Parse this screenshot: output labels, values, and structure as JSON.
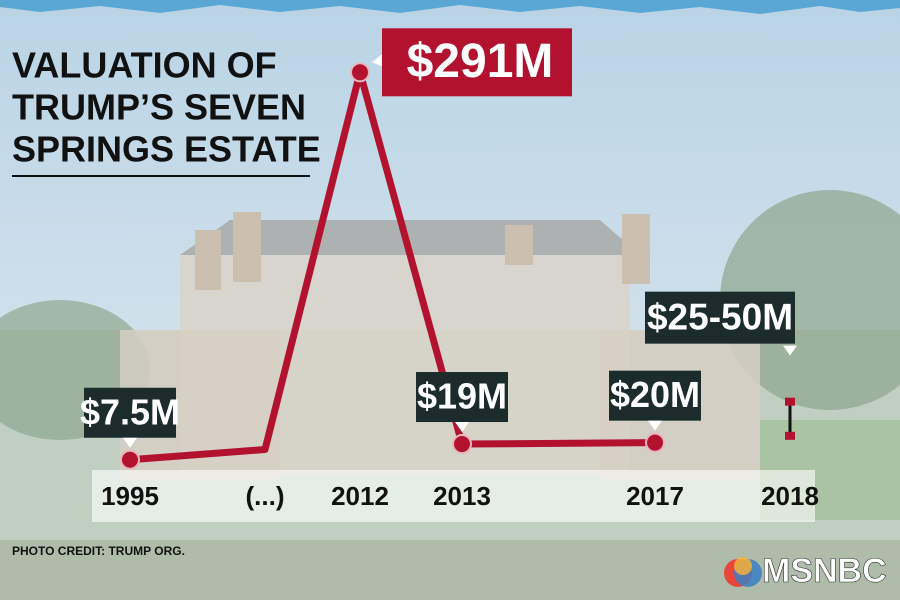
{
  "chart_data": {
    "type": "line",
    "title_lines": [
      "VALUATION OF",
      "TRUMP’S SEVEN",
      "SPRINGS ESTATE"
    ],
    "categories": [
      "1995",
      "(...)",
      "2012",
      "2013",
      "2017",
      "2018"
    ],
    "series": [
      {
        "color": "#b3122e",
        "values": [
          7.5,
          15,
          291,
          19,
          20,
          null
        ],
        "value_labels": [
          "$7.5M",
          null,
          "$291M",
          "$19M",
          "$20M",
          null
        ]
      }
    ],
    "range": {
      "low": 25,
      "high": 50,
      "label": "$25-50M"
    },
    "ylim": [
      0,
      300
    ],
    "credit": "PHOTO CREDIT: TRUMP ORG.",
    "network": "MSNBC"
  }
}
